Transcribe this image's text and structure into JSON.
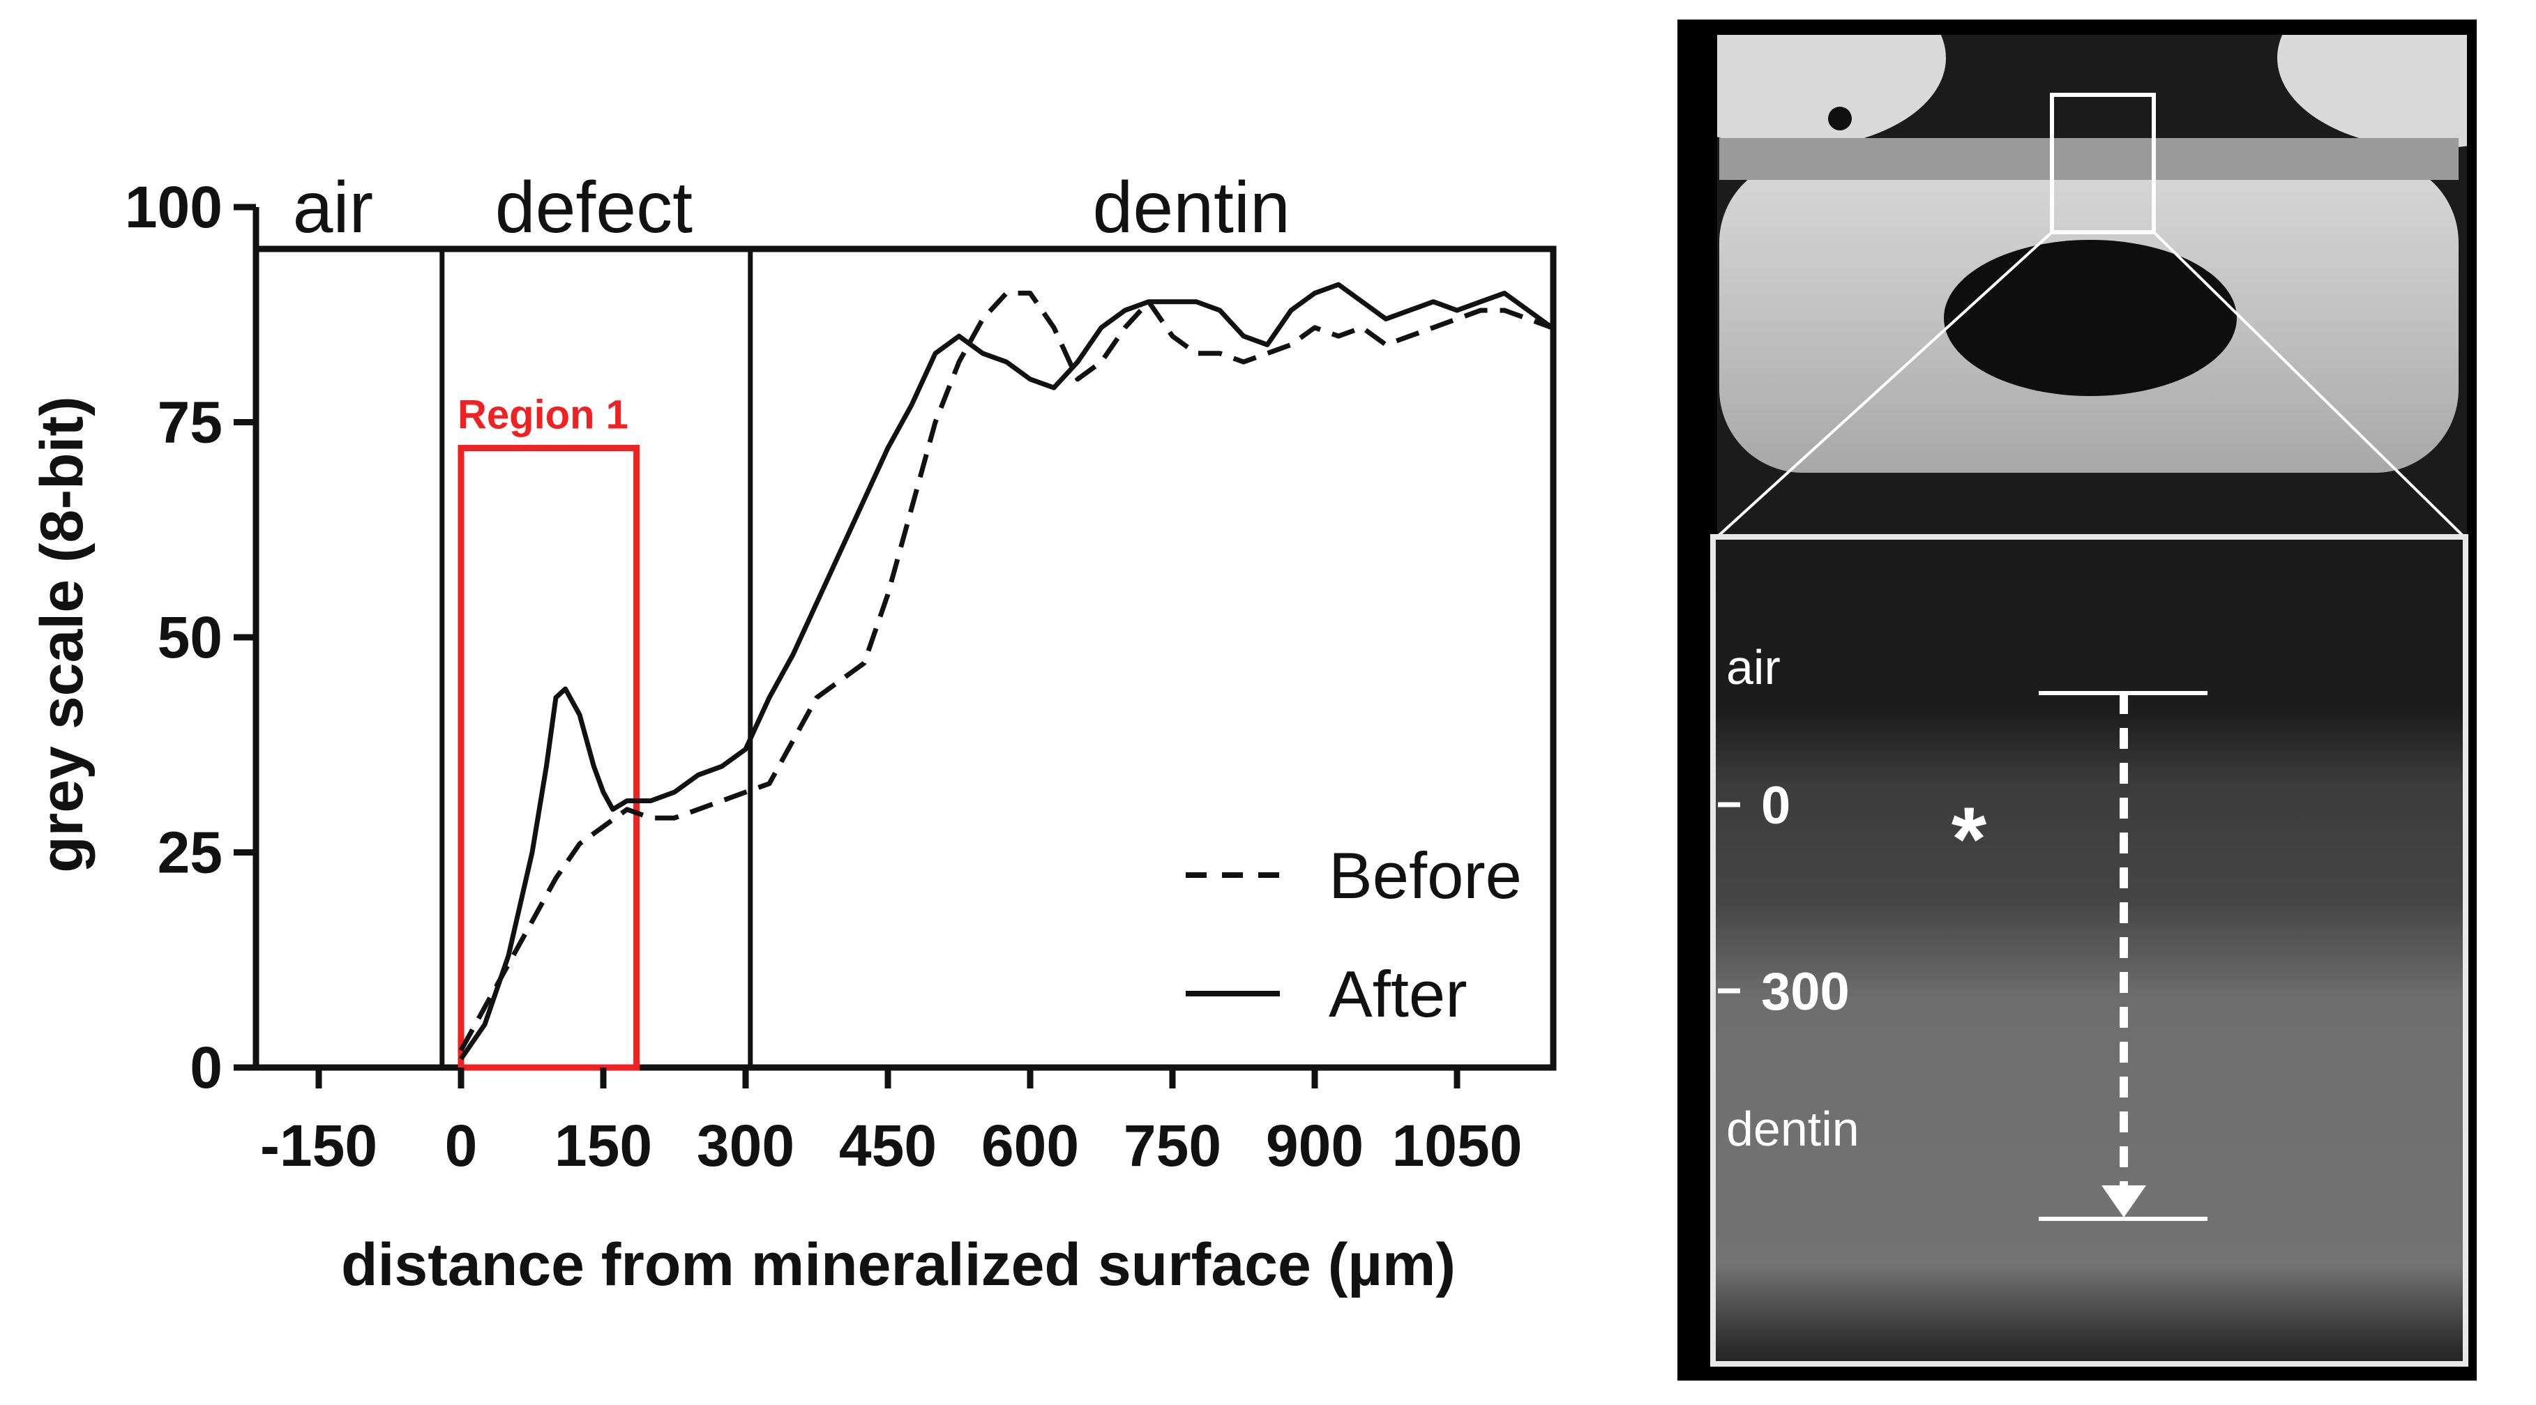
{
  "chart_data": {
    "type": "line",
    "xlabel": "distance from mineralized surface (µm)",
    "ylabel": "grey scale (8-bit)",
    "xlim": [
      -190,
      1230
    ],
    "ylim": [
      0,
      95
    ],
    "x_ticks": [
      -150,
      0,
      150,
      300,
      450,
      600,
      750,
      900,
      1050
    ],
    "y_ticks": [
      0,
      25,
      50,
      75,
      100
    ],
    "zone_boundaries": [
      -20,
      305
    ],
    "zones": [
      {
        "label": "air",
        "center": -135
      },
      {
        "label": "defect",
        "center": 140
      },
      {
        "label": "dentin",
        "center": 770
      }
    ],
    "region": {
      "label": "Region 1",
      "x0": 0,
      "x1": 185,
      "y0": 0,
      "y1": 72
    },
    "legend_position": "bottom-right",
    "series": [
      {
        "name": "Before",
        "style": "dashed",
        "x": [
          0,
          25,
          50,
          75,
          100,
          125,
          150,
          175,
          200,
          225,
          250,
          275,
          300,
          325,
          350,
          375,
          400,
          425,
          450,
          475,
          500,
          525,
          550,
          575,
          600,
          625,
          650,
          675,
          700,
          725,
          750,
          775,
          800,
          825,
          850,
          875,
          900,
          925,
          950,
          975,
          1000,
          1025,
          1050,
          1075,
          1100,
          1125,
          1150,
          1175,
          1200,
          1225
        ],
        "values": [
          2,
          7,
          12,
          17,
          22,
          26,
          28,
          30,
          29,
          29,
          30,
          31,
          32,
          33,
          38,
          43,
          45,
          47,
          55,
          65,
          75,
          82,
          87,
          90,
          90,
          86,
          80,
          82,
          86,
          89,
          85,
          83,
          83,
          82,
          83,
          84,
          86,
          85,
          86,
          84,
          85,
          86,
          87,
          88,
          88,
          87,
          86,
          86,
          86,
          84
        ]
      },
      {
        "name": "After",
        "style": "solid",
        "x": [
          0,
          25,
          50,
          75,
          90,
          100,
          110,
          125,
          140,
          150,
          160,
          175,
          200,
          225,
          250,
          275,
          300,
          325,
          350,
          375,
          400,
          425,
          450,
          475,
          500,
          525,
          550,
          575,
          600,
          625,
          650,
          675,
          700,
          725,
          750,
          775,
          800,
          825,
          850,
          875,
          900,
          925,
          950,
          975,
          1000,
          1025,
          1050,
          1075,
          1100,
          1125,
          1150,
          1175,
          1200,
          1225
        ],
        "values": [
          1,
          5,
          13,
          25,
          35,
          43,
          44,
          41,
          35,
          32,
          30,
          31,
          31,
          32,
          34,
          35,
          37,
          43,
          48,
          54,
          60,
          66,
          72,
          77,
          83,
          85,
          83,
          82,
          80,
          79,
          82,
          86,
          88,
          89,
          89,
          89,
          88,
          85,
          84,
          88,
          90,
          91,
          89,
          87,
          88,
          89,
          88,
          89,
          90,
          88,
          86,
          84,
          85,
          84
        ]
      }
    ]
  },
  "inset": {
    "labels": {
      "air": "air",
      "dentin": "dentin",
      "tick_top": "0",
      "tick_bottom": "300",
      "asterisk": "*"
    },
    "colors": {
      "panel_background": "#000000",
      "arrow": "#ffffff",
      "frame": "#ffffff"
    }
  }
}
